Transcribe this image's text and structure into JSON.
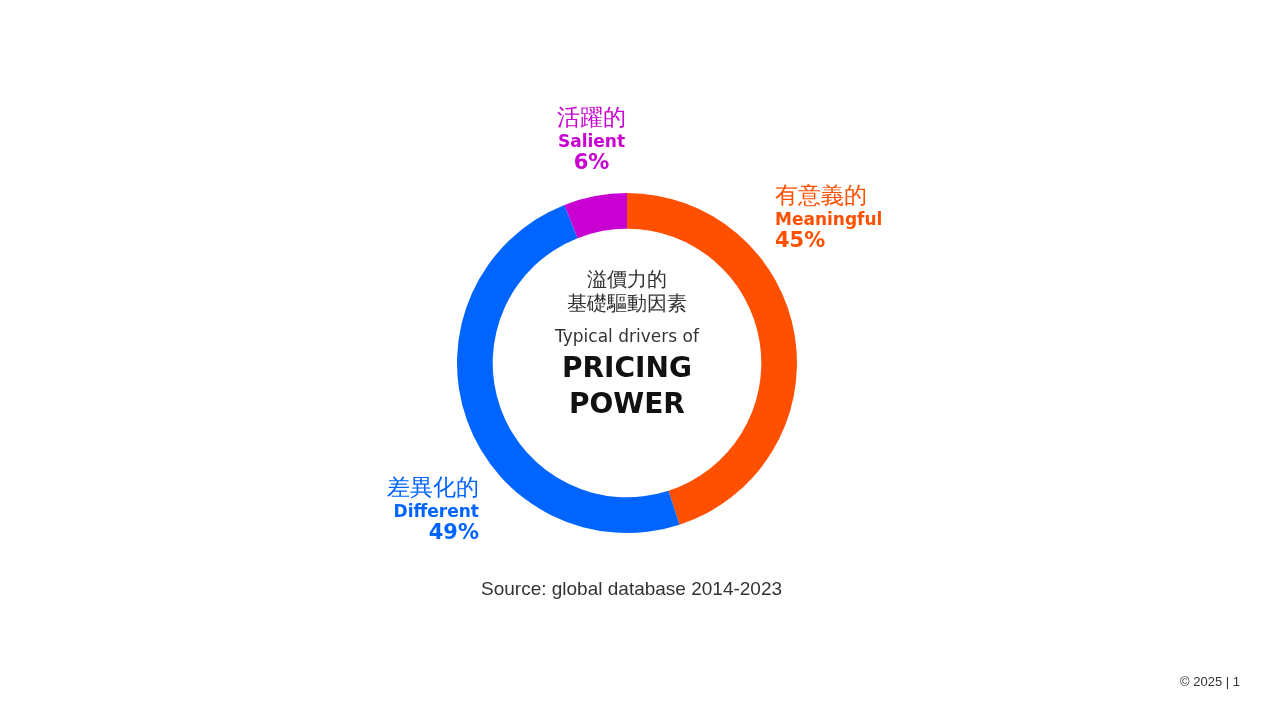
{
  "chart_data": {
    "type": "donut",
    "categories": [
      "有意義的\nMeaningful",
      "差異化的\nDifferent",
      "活躍的\nSalient"
    ],
    "values": [
      45,
      49,
      6
    ],
    "colors": [
      "#ff5000",
      "#0064ff",
      "#c800d2"
    ],
    "value_labels": [
      "45%",
      "49%",
      "6%"
    ],
    "annotations": [
      "溢價力的",
      "基礎驅動因素",
      "Typical drivers of",
      "PRICING\nPOWER",
      "Source: global database 2014-2023",
      "© 2025 | 1"
    ]
  }
}
